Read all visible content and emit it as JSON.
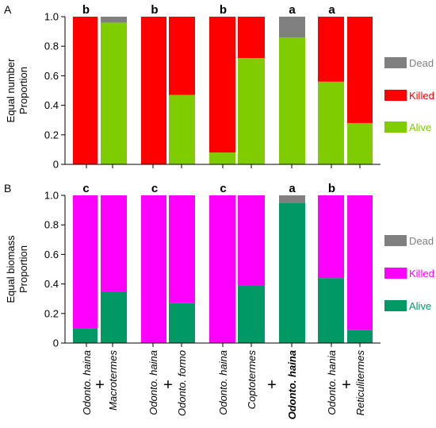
{
  "chart_data": [
    {
      "type": "bar",
      "stacked": true,
      "panel_label": "A",
      "ylabel_line1": "Equal number",
      "ylabel_line2": "Proportion",
      "ylim": [
        0,
        1
      ],
      "yticks": [
        "0",
        "0.2",
        "0.4",
        "0.6",
        "0.8",
        "1.0"
      ],
      "legend_placement": "right",
      "series": [
        {
          "name": "Dead",
          "color": "#808080"
        },
        {
          "name": "Killed",
          "color": "#ff0000"
        },
        {
          "name": "Alive",
          "color": "#7fcc00"
        }
      ],
      "groups": [
        {
          "letter": "b",
          "bars": [
            {
              "alive": 0.0,
              "killed": 1.0,
              "dead": 0.0
            },
            {
              "alive": 0.96,
              "killed": 0.0,
              "dead": 0.04
            }
          ]
        },
        {
          "letter": "b",
          "bars": [
            {
              "alive": 0.0,
              "killed": 1.0,
              "dead": 0.0
            },
            {
              "alive": 0.47,
              "killed": 0.53,
              "dead": 0.0
            }
          ]
        },
        {
          "letter": "b",
          "bars": [
            {
              "alive": 0.08,
              "killed": 0.92,
              "dead": 0.0
            },
            {
              "alive": 0.72,
              "killed": 0.28,
              "dead": 0.0
            }
          ]
        },
        {
          "letter": "a",
          "bars": [
            {
              "alive": 0.86,
              "killed": 0.0,
              "dead": 0.14
            }
          ]
        },
        {
          "letter": "a",
          "bars": [
            {
              "alive": 0.56,
              "killed": 0.44,
              "dead": 0.0
            },
            {
              "alive": 0.28,
              "killed": 0.72,
              "dead": 0.0
            }
          ]
        }
      ]
    },
    {
      "type": "bar",
      "stacked": true,
      "panel_label": "B",
      "ylabel_line1": "Equal biomass",
      "ylabel_line2": "Proportion",
      "ylim": [
        0,
        1
      ],
      "yticks": [
        "0",
        "0.2",
        "0.4",
        "0.6",
        "0.8",
        "1.0"
      ],
      "legend_placement": "right",
      "series": [
        {
          "name": "Dead",
          "color": "#808080"
        },
        {
          "name": "Killed",
          "color": "#ff00ff"
        },
        {
          "name": "Alive",
          "color": "#009966"
        }
      ],
      "groups": [
        {
          "letter": "c",
          "bars": [
            {
              "alive": 0.1,
              "killed": 0.9,
              "dead": 0.0
            },
            {
              "alive": 0.35,
              "killed": 0.65,
              "dead": 0.0
            }
          ]
        },
        {
          "letter": "c",
          "bars": [
            {
              "alive": 0.0,
              "killed": 1.0,
              "dead": 0.0
            },
            {
              "alive": 0.27,
              "killed": 0.73,
              "dead": 0.0
            }
          ]
        },
        {
          "letter": "c",
          "bars": [
            {
              "alive": 0.0,
              "killed": 1.0,
              "dead": 0.0
            },
            {
              "alive": 0.39,
              "killed": 0.61,
              "dead": 0.0
            }
          ]
        },
        {
          "letter": "a",
          "bars": [
            {
              "alive": 0.95,
              "killed": 0.0,
              "dead": 0.05
            }
          ]
        },
        {
          "letter": "b",
          "bars": [
            {
              "alive": 0.44,
              "killed": 0.56,
              "dead": 0.0
            },
            {
              "alive": 0.09,
              "killed": 0.91,
              "dead": 0.0
            }
          ]
        }
      ]
    }
  ],
  "x_groups": [
    {
      "labels": [
        "Odonto. haina",
        "Macrotermes"
      ],
      "bold": [
        false,
        false
      ],
      "plus": true
    },
    {
      "labels": [
        "Odonto. haina",
        "Odonto. formo"
      ],
      "bold": [
        false,
        false
      ],
      "plus": true
    },
    {
      "labels": [
        "Odonto. haina",
        "Coptotermes"
      ],
      "bold": [
        false,
        false
      ],
      "plus": true
    },
    {
      "labels": [
        "Odonto. haina"
      ],
      "bold": [
        true
      ],
      "plus": false
    },
    {
      "labels": [
        "Odonto. hania",
        "Reticulitermes"
      ],
      "bold": [
        false,
        false
      ],
      "plus": true
    }
  ]
}
